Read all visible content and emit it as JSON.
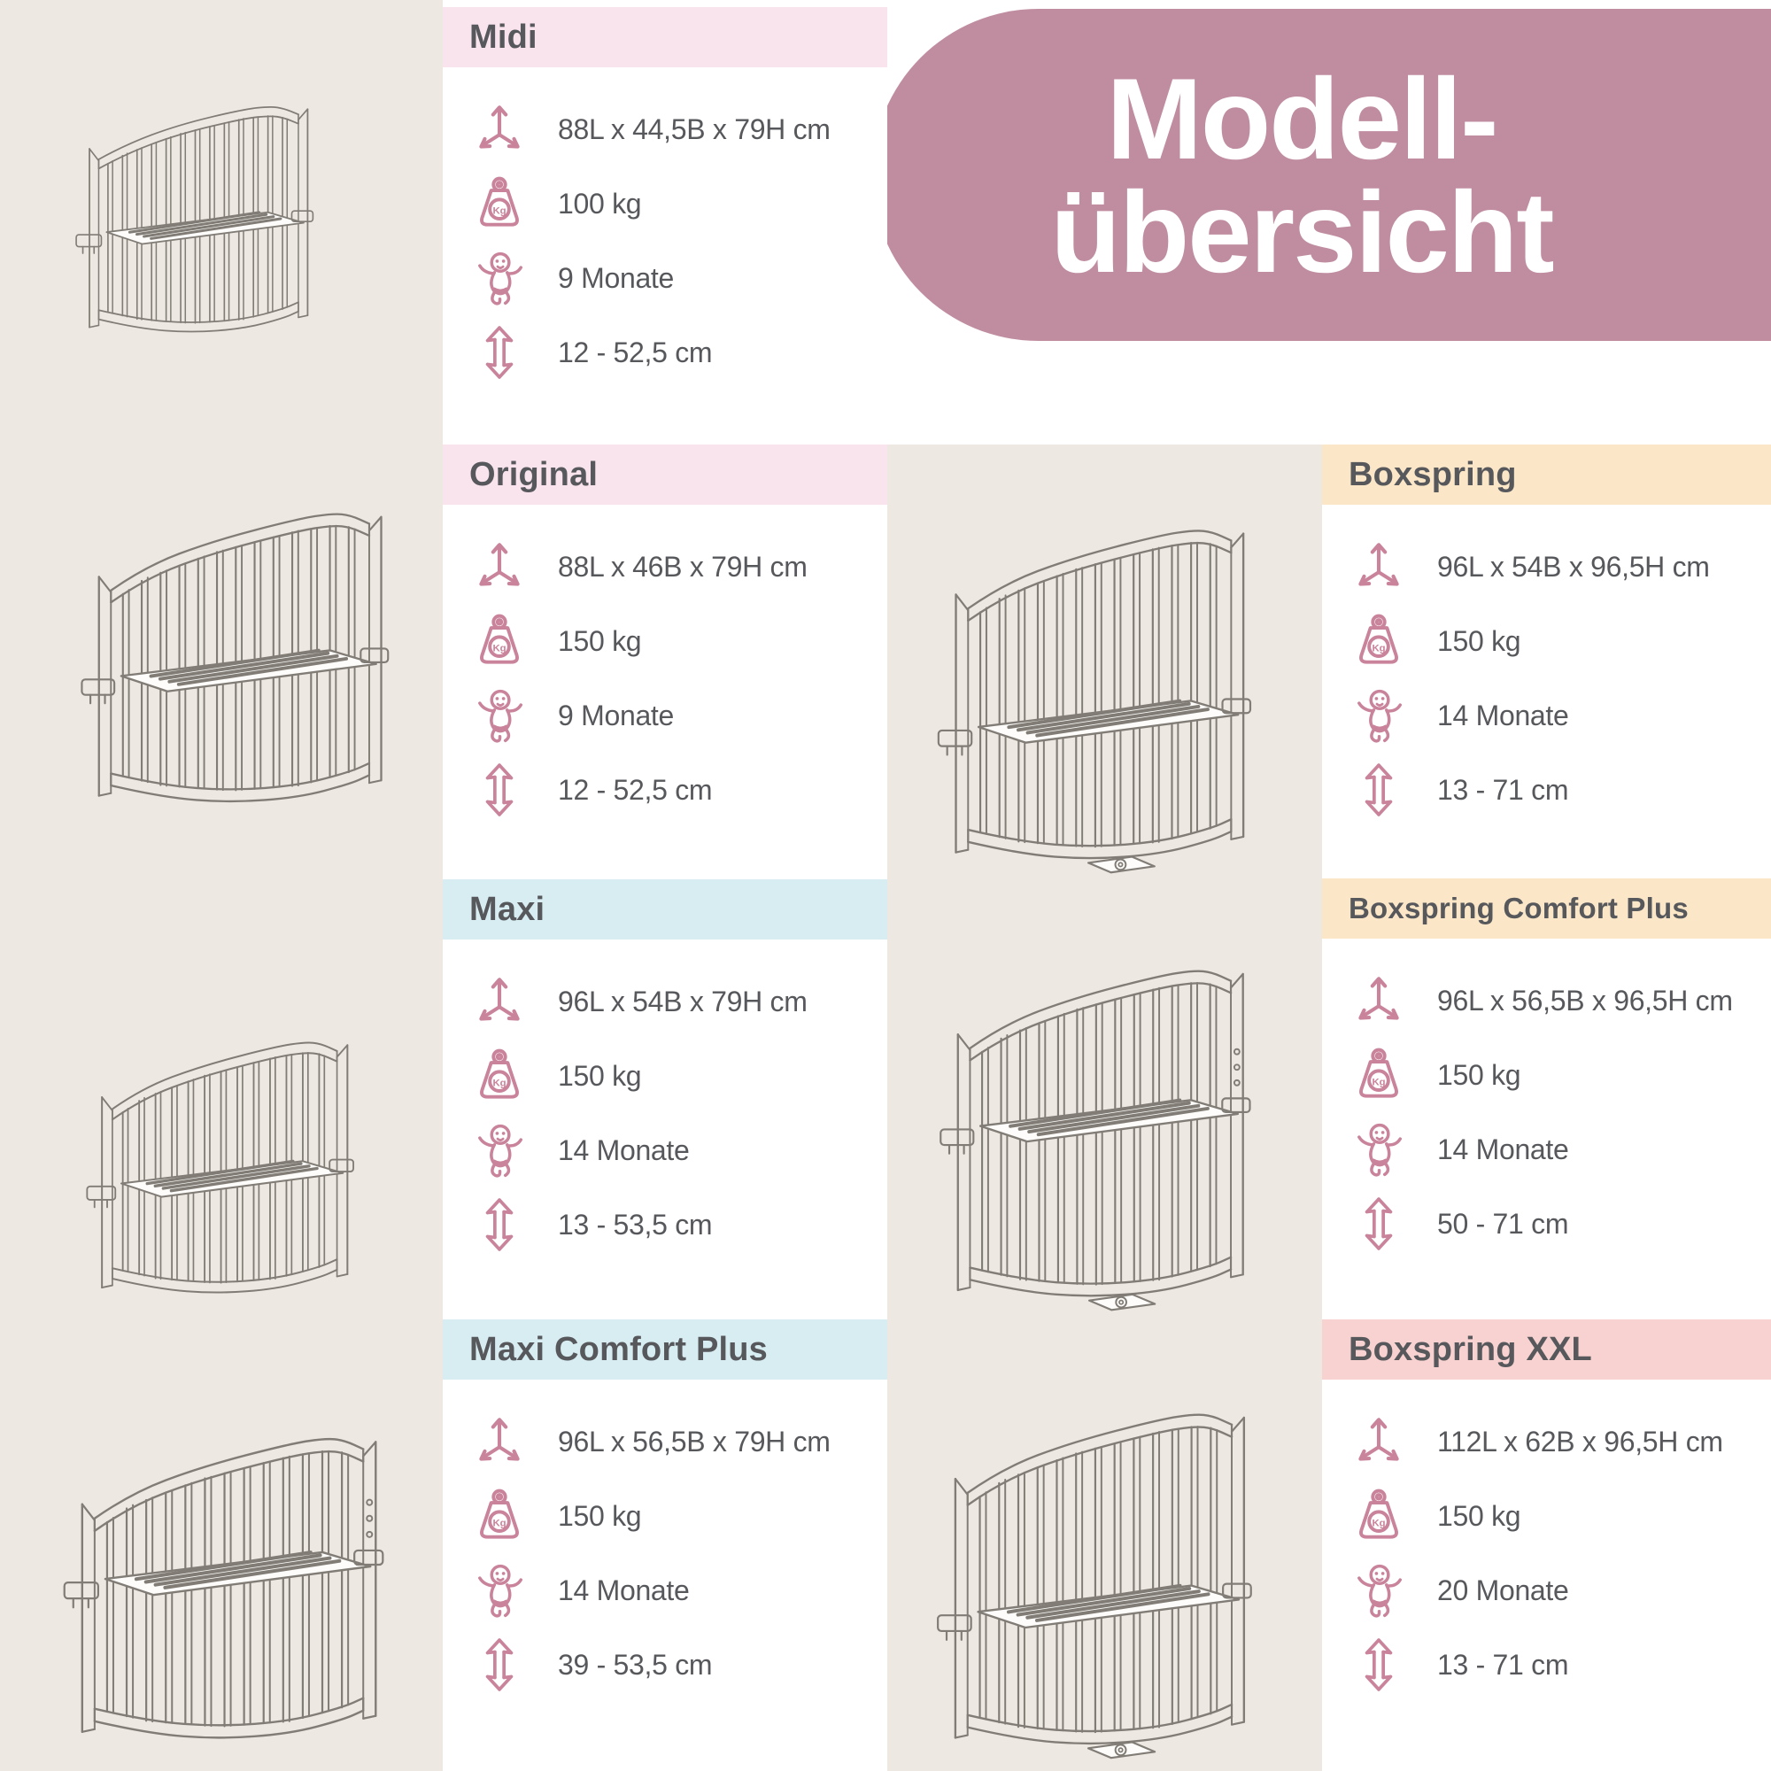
{
  "page": {
    "background": "#EDE8E2",
    "panel_color": "#FFFFFF",
    "text_color": "#57585C",
    "icon_color": "#C9839B",
    "illustration_stroke": "#817D76",
    "blob_color": "#C08DA0",
    "title_line1": "Modell-",
    "title_line2": "übersicht"
  },
  "icons": {
    "dimensions_icon": "3d-dimension-arrows",
    "weight_icon": "weight-kettlebell",
    "weight_label": "Kg",
    "age_icon": "baby",
    "height_icon": "vertical-double-arrow"
  },
  "sections": [
    {
      "id": "midi",
      "title": "Midi",
      "accent_color": "#F9E3ED",
      "dimensions": "88L x 44,5B x 79H cm",
      "max_weight": "100 kg",
      "age": "9 Monate",
      "height_range": "12 - 52,5 cm"
    },
    {
      "id": "original",
      "title": "Original",
      "accent_color": "#F9E3ED",
      "dimensions": "88L x 46B x 79H cm",
      "max_weight": "150 kg",
      "age": "9 Monate",
      "height_range": "12 - 52,5 cm"
    },
    {
      "id": "maxi",
      "title": "Maxi",
      "accent_color": "#D7EDF2",
      "dimensions": "96L x 54B x 79H cm",
      "max_weight": "150 kg",
      "age": "14 Monate",
      "height_range": "13 - 53,5 cm"
    },
    {
      "id": "maxi-comfort-plus",
      "title": "Maxi Comfort Plus",
      "accent_color": "#D7EDF2",
      "dimensions": "96L x 56,5B x 79H cm",
      "max_weight": "150 kg",
      "age": "14 Monate",
      "height_range": "39 - 53,5 cm"
    },
    {
      "id": "boxspring",
      "title": "Boxspring",
      "accent_color": "#FBE7C8",
      "dimensions": "96L x 54B x 96,5H cm",
      "max_weight": "150 kg",
      "age": "14 Monate",
      "height_range": "13 - 71 cm"
    },
    {
      "id": "boxspring-comfort-plus",
      "title": "Boxspring Comfort Plus",
      "accent_color": "#FBE7C8",
      "dimensions": "96L x 56,5B x 96,5H cm",
      "max_weight": "150 kg",
      "age": "14 Monate",
      "height_range": "50 - 71 cm"
    },
    {
      "id": "boxspring-xxl",
      "title": "Boxspring XXL",
      "accent_color": "#F8D2D0",
      "dimensions": "112L x 62B x 96,5H cm",
      "max_weight": "150 kg",
      "age": "20 Monate",
      "height_range": "13 - 71 cm"
    }
  ]
}
